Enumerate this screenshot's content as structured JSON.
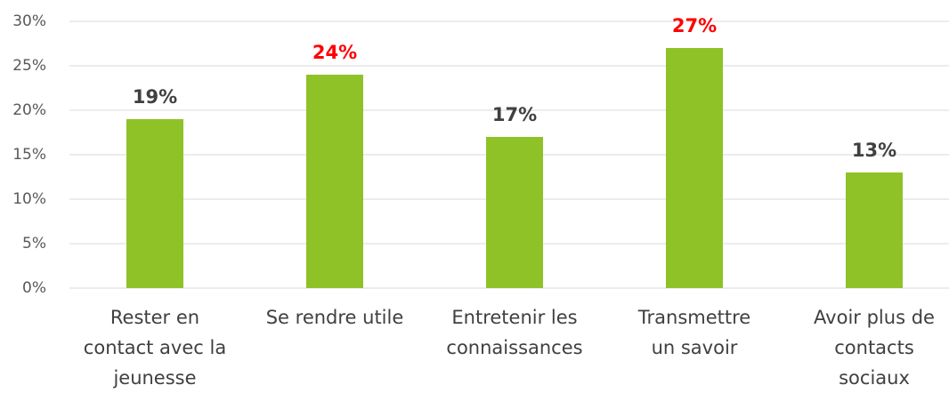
{
  "chart_data": {
    "type": "bar",
    "categories": [
      [
        "Rester en",
        "contact avec la",
        "jeunesse"
      ],
      [
        "Se rendre utile"
      ],
      [
        "Entretenir les",
        "connaissances"
      ],
      [
        "Transmettre",
        "un savoir"
      ],
      [
        "Avoir plus de",
        "contacts",
        "sociaux"
      ]
    ],
    "values": [
      19,
      24,
      17,
      27,
      13
    ],
    "value_labels": [
      "19%",
      "24%",
      "17%",
      "27%",
      "13%"
    ],
    "value_label_colors": [
      "#404040",
      "#ff0000",
      "#404040",
      "#ff0000",
      "#404040"
    ],
    "color": "#8fc227",
    "ylim": [
      0,
      30
    ],
    "yticks": [
      {
        "value": 0,
        "label": "0%"
      },
      {
        "value": 5,
        "label": "5%"
      },
      {
        "value": 10,
        "label": "10%"
      },
      {
        "value": 15,
        "label": "15%"
      },
      {
        "value": 20,
        "label": "20%"
      },
      {
        "value": 25,
        "label": "25%"
      },
      {
        "value": 30,
        "label": "30%"
      }
    ],
    "grid": true
  }
}
